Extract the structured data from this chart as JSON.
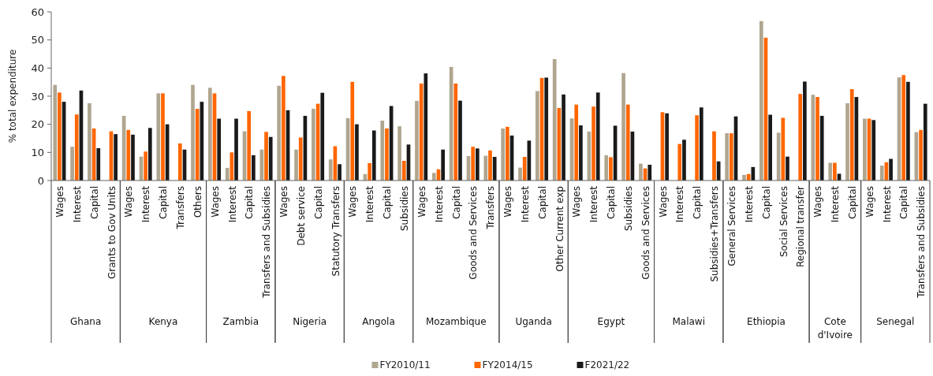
{
  "chart_data": [
    {
      "type": "bar",
      "xlabel": "Ghana",
      "ylabel": "% total expenditure",
      "ylim": [
        0,
        60
      ],
      "yticks": [
        0,
        10,
        20,
        30,
        40,
        50,
        60
      ],
      "legend": "bottom",
      "categories": [
        "Wages",
        "Interest",
        "Capital",
        "Grants to Gov Units"
      ],
      "series": [
        {
          "name": "FY2010/11",
          "color": "#b0a690",
          "values": [
            34,
            12,
            27.5,
            null
          ]
        },
        {
          "name": "FY2014/15",
          "color": "#ff6600",
          "values": [
            31.3,
            23.5,
            18.5,
            17.5
          ]
        },
        {
          "name": "F2021/22",
          "color": "#1a1a1a",
          "values": [
            28,
            32,
            11.5,
            16.5
          ]
        }
      ]
    },
    {
      "type": "bar",
      "xlabel": "Kenya",
      "ylim": [
        0,
        60
      ],
      "tick_labels": "x",
      "categories": [
        "Wages",
        "Interest",
        "Capital",
        "Transfers",
        "Others"
      ],
      "series": [
        {
          "color": "#b0a690",
          "values": [
            23,
            8.5,
            31,
            null,
            34
          ]
        },
        {
          "color": "#ff6600",
          "values": [
            18,
            10.3,
            31,
            13.2,
            25.5
          ]
        },
        {
          "color": "#1a1a1a",
          "values": [
            16.3,
            18.7,
            20,
            11,
            28
          ]
        }
      ]
    },
    {
      "type": "bar",
      "xlabel": "Zambia",
      "ylim": [
        0,
        60
      ],
      "tick_labels": "x",
      "categories": [
        "Wages",
        "Interest",
        "Capital",
        "Transfers and Subsidies"
      ],
      "series": [
        {
          "color": "#b0a690",
          "values": [
            33,
            4.5,
            17.5,
            11
          ]
        },
        {
          "color": "#ff6600",
          "values": [
            31,
            10,
            24.7,
            17.3
          ]
        },
        {
          "color": "#1a1a1a",
          "values": [
            22,
            22,
            9,
            15.5
          ]
        }
      ]
    },
    {
      "type": "bar",
      "xlabel": "Nigeria",
      "ylim": [
        0,
        60
      ],
      "tick_labels": "x",
      "categories": [
        "Wages",
        "Debt service",
        "Capital",
        "Statutory Transfers"
      ],
      "series": [
        {
          "color": "#b0a690",
          "values": [
            33.7,
            11,
            25.5,
            7.5
          ]
        },
        {
          "color": "#ff6600",
          "values": [
            37.2,
            15.3,
            27.3,
            12.2
          ]
        },
        {
          "color": "#1a1a1a",
          "values": [
            25,
            23,
            31.2,
            5.8
          ]
        }
      ]
    },
    {
      "type": "bar",
      "xlabel": "Angola",
      "ylim": [
        0,
        60
      ],
      "tick_labels": "x",
      "categories": [
        "Wages",
        "Interest",
        "Capital",
        "Subsidies"
      ],
      "series": [
        {
          "color": "#b0a690",
          "values": [
            22.2,
            2.3,
            21.3,
            19.3
          ]
        },
        {
          "color": "#ff6600",
          "values": [
            35.1,
            6.2,
            18.5,
            7
          ]
        },
        {
          "color": "#1a1a1a",
          "values": [
            20,
            17.8,
            26.5,
            12.8
          ]
        }
      ]
    },
    {
      "type": "bar",
      "xlabel": "Mozambique",
      "ylim": [
        0,
        60
      ],
      "tick_labels": "x",
      "categories": [
        "Wages",
        "Interest",
        "Capital",
        "Goods and Services",
        "Transfers"
      ],
      "series": [
        {
          "color": "#b0a690",
          "values": [
            28.3,
            2.7,
            40.4,
            8.7,
            8.8
          ]
        },
        {
          "color": "#ff6600",
          "values": [
            34.5,
            4,
            34.5,
            12,
            10.7
          ]
        },
        {
          "color": "#1a1a1a",
          "values": [
            38.1,
            11,
            28.4,
            11.4,
            8.4
          ]
        }
      ]
    },
    {
      "type": "bar",
      "xlabel": "Uganda",
      "ylim": [
        0,
        60
      ],
      "tick_labels": "x",
      "categories": [
        "Wages",
        "Interest",
        "Capital",
        "Other Current exp"
      ],
      "series": [
        {
          "color": "#b0a690",
          "values": [
            18.5,
            4.6,
            31.8,
            43.2
          ]
        },
        {
          "color": "#ff6600",
          "values": [
            19.1,
            8.4,
            36.5,
            25.8
          ]
        },
        {
          "color": "#1a1a1a",
          "values": [
            16,
            14.2,
            36.6,
            30.6
          ]
        }
      ]
    },
    {
      "type": "bar",
      "xlabel": "Egypt",
      "ylim": [
        0,
        60
      ],
      "tick_labels": "x",
      "categories": [
        "Wages",
        "Interest",
        "Capital",
        "Subsidies",
        "Goods and Services"
      ],
      "series": [
        {
          "color": "#b0a690",
          "values": [
            22.1,
            17.4,
            9,
            38.2,
            6
          ]
        },
        {
          "color": "#ff6600",
          "values": [
            27,
            26.3,
            8.3,
            27,
            4.3
          ]
        },
        {
          "color": "#1a1a1a",
          "values": [
            19.6,
            31.3,
            19.5,
            17.4,
            5.6
          ]
        }
      ]
    },
    {
      "type": "bar",
      "xlabel": "Malawi",
      "ylim": [
        0,
        60
      ],
      "tick_labels": "x",
      "categories": [
        "Wages",
        "Interest",
        "Capital",
        "Subsidies+Transfers"
      ],
      "series": [
        {
          "values": [
            null,
            null,
            null,
            null
          ]
        },
        {
          "color": "#ff6600",
          "values": [
            24.3,
            13,
            23.2,
            17.5
          ]
        },
        {
          "color": "#1a1a1a",
          "values": [
            23.9,
            14.5,
            26,
            6.8
          ]
        }
      ]
    },
    {
      "type": "bar",
      "xlabel": "Ethiopia",
      "ylim": [
        0,
        60
      ],
      "tick_labels": "x",
      "categories": [
        "General Services",
        "Interest",
        "Capital",
        "Social Services",
        "Regional transfer"
      ],
      "series": [
        {
          "color": "#b0a690",
          "values": [
            16.8,
            2,
            56.7,
            17,
            null
          ]
        },
        {
          "color": "#ff6600",
          "values": [
            16.8,
            2.3,
            50.8,
            22.3,
            30.8
          ]
        },
        {
          "color": "#1a1a1a",
          "values": [
            22.8,
            4.8,
            23.4,
            8.5,
            35.2
          ]
        }
      ]
    },
    {
      "type": "bar",
      "xlabel": "Cote d'Ivoire",
      "ylim": [
        0,
        60
      ],
      "tick_labels": "x",
      "categories": [
        "Wages",
        "Interest",
        "Capital"
      ],
      "series": [
        {
          "color": "#b0a690",
          "values": [
            30.5,
            6.3,
            27.5
          ]
        },
        {
          "color": "#ff6600",
          "values": [
            29.7,
            6.3,
            32.5
          ]
        },
        {
          "color": "#1a1a1a",
          "values": [
            23,
            2.4,
            29.7
          ]
        }
      ]
    },
    {
      "type": "bar",
      "xlabel": "Senegal",
      "ylim": [
        0,
        60
      ],
      "tick_labels": "x",
      "categories": [
        "Wages",
        "Interest",
        "Capital",
        "Transfers and Subsidies"
      ],
      "series": [
        {
          "color": "#b0a690",
          "values": [
            22,
            5.3,
            36.7,
            17.2
          ]
        },
        {
          "color": "#ff6600",
          "values": [
            22,
            6.5,
            37.5,
            18
          ]
        },
        {
          "color": "#1a1a1a",
          "values": [
            21.5,
            7.7,
            35.1,
            27.3
          ]
        }
      ]
    }
  ]
}
